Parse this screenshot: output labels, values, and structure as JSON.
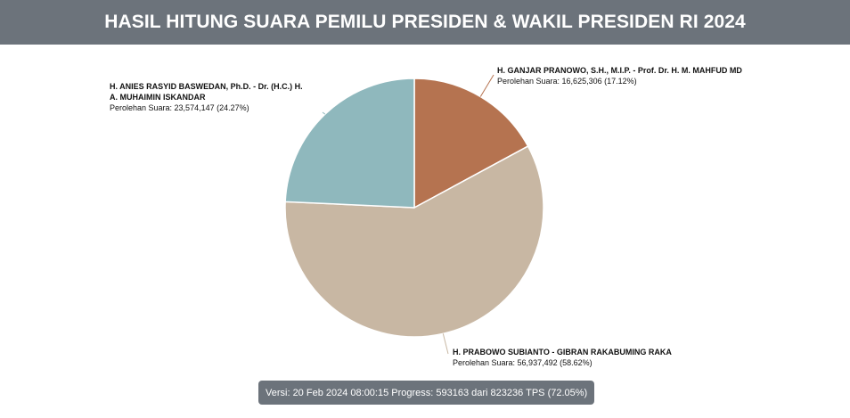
{
  "header": {
    "title": "HASIL HITUNG SUARA PEMILU PRESIDEN & WAKIL PRESIDEN RI 2024"
  },
  "chart_data": {
    "type": "pie",
    "slices": [
      {
        "name_lines": [
          "H. GANJAR PRANOWO, S.H., M.I.P. - Prof. Dr. H. M. MAHFUD MD"
        ],
        "votes_label": "Perolehan Suara: 16,625,306 (17.12%)",
        "value": 16625306,
        "percent": 17.12,
        "color": "#b57350"
      },
      {
        "name_lines": [
          "H. PRABOWO SUBIANTO - GIBRAN RAKABUMING RAKA"
        ],
        "votes_label": "Perolehan Suara: 56,937,492 (58.62%)",
        "value": 56937492,
        "percent": 58.62,
        "color": "#c8b7a3"
      },
      {
        "name_lines": [
          "H. ANIES RASYID BASWEDAN, Ph.D. - Dr. (H.C.) H.",
          "A. MUHAIMIN ISKANDAR"
        ],
        "votes_label": "Perolehan Suara: 23,574,147 (24.27%)",
        "value": 23574147,
        "percent": 24.27,
        "color": "#8fb8bd"
      }
    ],
    "start_angle": "top",
    "direction": "clockwise",
    "legend": "none"
  },
  "footer": {
    "status": "Versi: 20 Feb 2024 08:00:15 Progress: 593163 dari 823236 TPS (72.05%)"
  }
}
